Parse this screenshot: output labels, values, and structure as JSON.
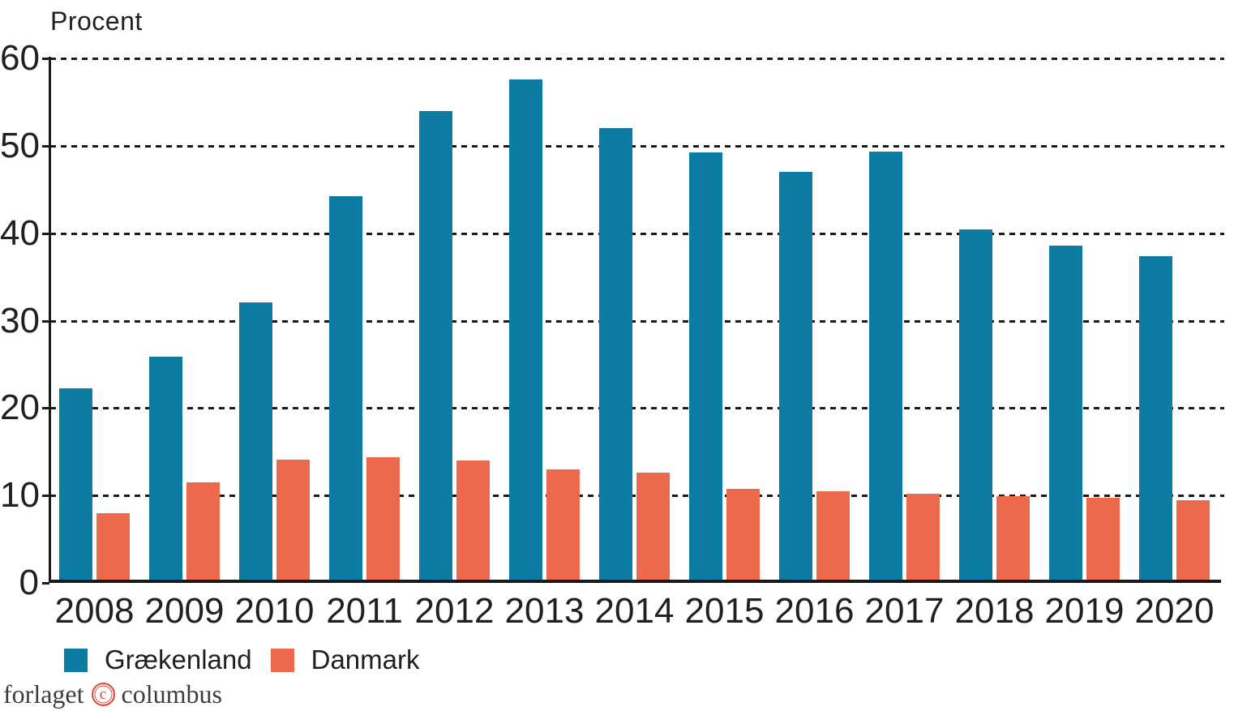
{
  "chart_data": {
    "type": "bar",
    "title": "Procent",
    "ylabel": "Procent",
    "xlabel": "",
    "categories": [
      "2008",
      "2009",
      "2010",
      "2011",
      "2012",
      "2013",
      "2014",
      "2015",
      "2016",
      "2017",
      "2018",
      "2019",
      "2020"
    ],
    "series": [
      {
        "name": "Grækenland",
        "color": "#0d7ca3",
        "values": [
          22.3,
          25.9,
          32.1,
          44.2,
          54.0,
          57.6,
          52.0,
          49.2,
          47.0,
          49.3,
          40.4,
          38.6,
          37.4
        ]
      },
      {
        "name": "Danmark",
        "color": "#ec6a4b",
        "values": [
          8.0,
          11.5,
          14.1,
          14.4,
          14.0,
          13.0,
          12.6,
          10.8,
          10.5,
          10.2,
          9.9,
          9.7,
          9.5
        ]
      }
    ],
    "ylim": [
      0,
      60
    ],
    "yticks": [
      0,
      10,
      20,
      30,
      40,
      50,
      60
    ],
    "grid": "horizontal-dashed",
    "grid_color": "#1a1a1a",
    "axis_color": "#1a1a1a",
    "legend_position": "bottom-left"
  },
  "footer": {
    "left": "forlaget",
    "symbol": "c",
    "right": "columbus",
    "accent_color": "#e04a33",
    "text_color": "#3e3c3d"
  }
}
